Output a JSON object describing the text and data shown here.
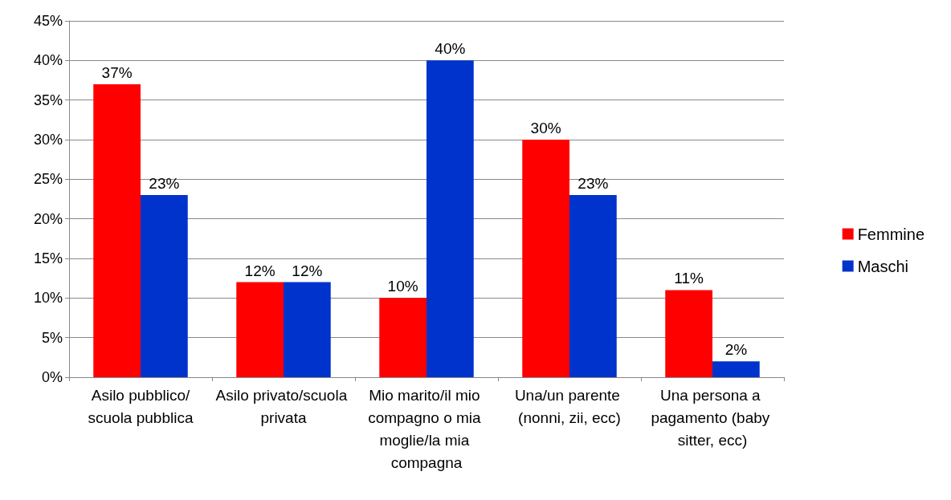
{
  "chart_data": {
    "type": "bar",
    "categories": [
      "Asilo pubblico/scuola pubblica",
      "Asilo privato/scuola privata",
      "Mio marito/il mio compagno o mia moglie/la mia compagna",
      "Una/un parente (nonni, zii, ecc)",
      "Una persona a pagamento (baby sitter, ecc)"
    ],
    "series": [
      {
        "name": "Femmine",
        "color": "#ff0000",
        "values": [
          37,
          12,
          10,
          30,
          11
        ],
        "value_labels": [
          "37%",
          "12%",
          "10%",
          "30%",
          "11%"
        ]
      },
      {
        "name": "Maschi",
        "color": "#0033cc",
        "values": [
          23,
          12,
          40,
          23,
          2
        ],
        "value_labels": [
          "23%",
          "12%",
          "40%",
          "23%",
          "2%"
        ]
      }
    ],
    "ylim": [
      0,
      45
    ],
    "yticks": [
      {
        "value": 0,
        "label": "0%"
      },
      {
        "value": 5,
        "label": "5%"
      },
      {
        "value": 10,
        "label": "10%"
      },
      {
        "value": 15,
        "label": "15%"
      },
      {
        "value": 20,
        "label": "20%"
      },
      {
        "value": 25,
        "label": "25%"
      },
      {
        "value": 30,
        "label": "30%"
      },
      {
        "value": 35,
        "label": "35%"
      },
      {
        "value": 40,
        "label": "40%"
      },
      {
        "value": 45,
        "label": "45%"
      }
    ],
    "grid": "y",
    "legend": "right"
  }
}
